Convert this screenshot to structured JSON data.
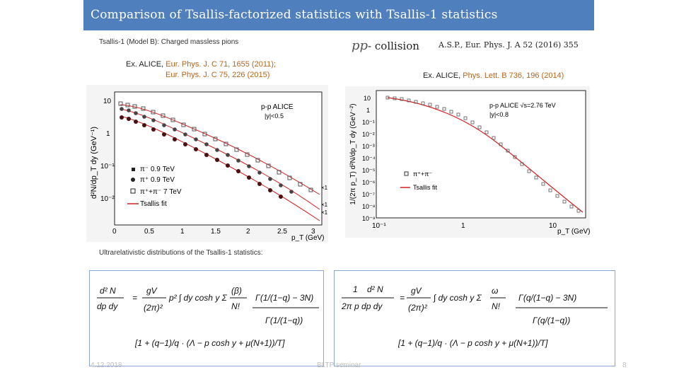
{
  "title": "Comparison of Tsallis-factorized statistics with Tsallis-1 statistics",
  "left_note": "Tsallis-1 (Model B): Charged massless pions",
  "collision": {
    "symbol": "pp",
    "label": "- collision"
  },
  "citation_right": "A.S.P., Eur. Phys. J. A 52 (2016) 355",
  "ex_left": {
    "prefix": "Ex. ALICE, ",
    "ref1": "Eur. Phys. J. C 71, 1655 (2011);",
    "ref2": "Eur. Phys. J. C 75, 226 (2015)"
  },
  "ex_right": {
    "prefix": "Ex. ALICE, ",
    "ref": "Phys. Lett. B 736, 196 (2014)"
  },
  "ultra_note": "Ultrarelativistic distributions of the Tsallis-1 statistics:",
  "plot_left": {
    "ylabel": "d²N/dp_T dy (GeV⁻¹)",
    "xlabel": "p_T (GeV)",
    "header": "p-p  ALICE",
    "subheader": "|y|<0.5",
    "legend": [
      "π⁻ 0.9 TeV",
      "π⁺ 0.9 TeV",
      "π⁺+π⁻ 7 TeV",
      "Tsallis fit"
    ],
    "scale_labels": [
      "×1",
      "×1",
      "×1"
    ],
    "xticks": [
      "0",
      "0.5",
      "1",
      "1.5",
      "2",
      "2.5",
      "3"
    ],
    "yticks": [
      "10",
      "1",
      "10⁻¹",
      "10⁻²"
    ]
  },
  "plot_right": {
    "ylabel": "1/(2π p_T) d²N/dp_T dy (GeV⁻²)",
    "xlabel": "p_T (GeV)",
    "header": "p-p  ALICE  √s=2.76 TeV",
    "subheader": "|y|<0.8",
    "legend": [
      "π⁺+π⁻",
      "Tsallis fit"
    ],
    "xticks": [
      "10⁻¹",
      "1",
      "10"
    ],
    "yticks": [
      "10",
      "1",
      "10⁻¹",
      "10⁻²",
      "10⁻³",
      "10⁻⁴",
      "10⁻⁵",
      "10⁻⁶",
      "10⁻⁷",
      "10⁻⁸",
      "10⁻⁹"
    ]
  },
  "footer": {
    "date": "4.12.2018",
    "center": "BLTP seminar",
    "page": "8"
  },
  "colors": {
    "title_bg": "#4f7fbd",
    "box_border": "#8aa6d6",
    "accent_ref": "#b5651d",
    "fit_line": "#d62020"
  }
}
